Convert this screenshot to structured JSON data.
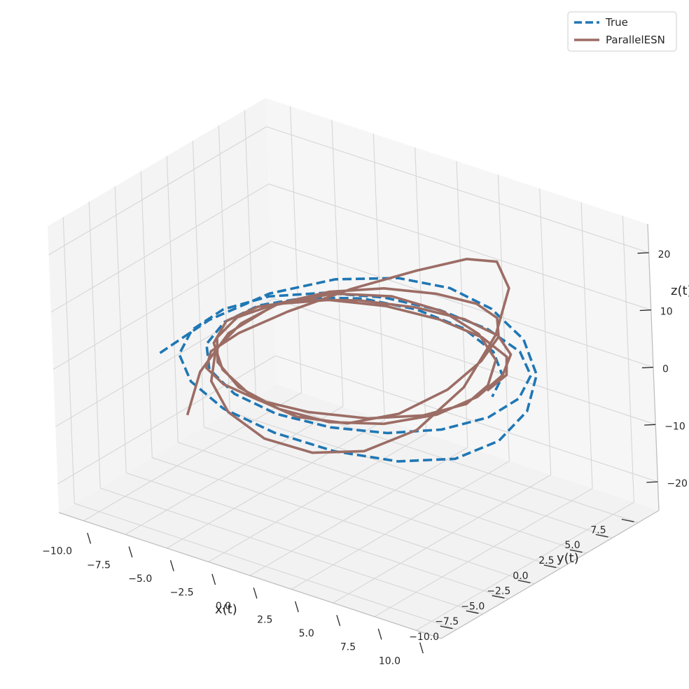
{
  "chart_data": {
    "type": "line",
    "projection": "3d",
    "grid": true,
    "legend_position": "top-right",
    "xlabel": "x(t)",
    "ylabel": "y(t)",
    "zlabel": "z(t)",
    "xlim": [
      -11.5,
      11.5
    ],
    "ylim": [
      -11.5,
      9.5
    ],
    "zlim": [
      -25,
      25
    ],
    "x_ticks": [
      "−10.0",
      "−7.5",
      "−5.0",
      "−2.5",
      "0.0",
      "2.5",
      "5.0",
      "7.5",
      "10.0"
    ],
    "y_ticks": [
      "−10.0",
      "−7.5",
      "−5.0",
      "−2.5",
      "0.0",
      "2.5",
      "5.0",
      "7.5"
    ],
    "z_ticks": [
      "−20",
      "−10",
      "0",
      "10",
      "20"
    ],
    "series": [
      {
        "name": "True",
        "style": "dashed",
        "color": "#1f77b4",
        "points": [
          [
            -9.8,
            -4.0,
            -3.5
          ],
          [
            -9.3,
            0.0,
            -1.5
          ],
          [
            -7.9,
            3.6,
            0.6
          ],
          [
            -5.6,
            6.3,
            2.4
          ],
          [
            -2.8,
            7.9,
            3.6
          ],
          [
            0.0,
            8.4,
            4.0
          ],
          [
            2.8,
            7.9,
            3.6
          ],
          [
            5.6,
            6.5,
            2.4
          ],
          [
            7.8,
            4.2,
            0.8
          ],
          [
            9.2,
            1.0,
            -0.8
          ],
          [
            9.6,
            -2.4,
            -2.0
          ],
          [
            8.9,
            -5.5,
            -2.5
          ],
          [
            6.9,
            -7.8,
            -2.4
          ],
          [
            4.0,
            -9.3,
            -1.8
          ],
          [
            0.8,
            -9.9,
            -1.0
          ],
          [
            -2.5,
            -9.5,
            -0.4
          ],
          [
            -5.4,
            -8.0,
            0.0
          ],
          [
            -7.6,
            -5.6,
            0.1
          ],
          [
            -8.7,
            -2.6,
            0.1
          ],
          [
            -8.8,
            0.6,
            0.2
          ],
          [
            -7.8,
            3.4,
            0.4
          ],
          [
            -5.8,
            5.5,
            0.7
          ],
          [
            -3.1,
            6.9,
            1.0
          ],
          [
            0.0,
            7.4,
            1.2
          ],
          [
            3.1,
            7.0,
            1.3
          ],
          [
            5.8,
            5.8,
            1.2
          ],
          [
            7.7,
            3.8,
            1.0
          ],
          [
            8.6,
            1.2,
            0.6
          ],
          [
            8.5,
            -1.6,
            0.2
          ],
          [
            7.3,
            -4.2,
            -0.3
          ],
          [
            5.3,
            -6.2,
            -0.7
          ],
          [
            2.6,
            -7.4,
            -1.0
          ],
          [
            -0.4,
            -7.8,
            -1.1
          ],
          [
            -3.3,
            -7.2,
            -1.0
          ],
          [
            -5.8,
            -5.6,
            -0.8
          ],
          [
            -7.4,
            -3.3,
            -0.4
          ],
          [
            -8.0,
            -0.6,
            0.0
          ],
          [
            -7.6,
            2.1,
            0.4
          ],
          [
            -6.1,
            4.4,
            0.8
          ],
          [
            -3.8,
            6.0,
            1.1
          ],
          [
            -0.9,
            6.6,
            1.3
          ],
          [
            2.1,
            6.3,
            1.2
          ],
          [
            4.7,
            5.0,
            1.0
          ],
          [
            6.5,
            3.0,
            0.6
          ],
          [
            7.3,
            0.7,
            0.2
          ]
        ]
      },
      {
        "name": "ParallelESN",
        "style": "solid",
        "color": "#9c6d65",
        "points": [
          [
            -6.6,
            -6.6,
            -8.5
          ],
          [
            -7.4,
            -4.0,
            -4.5
          ],
          [
            -7.5,
            -1.0,
            -1.0
          ],
          [
            -6.6,
            2.0,
            1.5
          ],
          [
            -4.6,
            4.5,
            2.8
          ],
          [
            -2.0,
            6.0,
            3.2
          ],
          [
            0.9,
            6.3,
            3.0
          ],
          [
            3.6,
            5.4,
            2.6
          ],
          [
            5.8,
            3.5,
            2.2
          ],
          [
            7.0,
            0.8,
            1.8
          ],
          [
            7.2,
            -1.6,
            1.3
          ],
          [
            6.1,
            -4.0,
            0.8
          ],
          [
            4.0,
            -6.0,
            0.4
          ],
          [
            1.2,
            -7.2,
            0.1
          ],
          [
            -1.6,
            -7.5,
            -0.2
          ],
          [
            -4.2,
            -6.8,
            -0.6
          ],
          [
            -6.3,
            -5.1,
            -1.6
          ],
          [
            -7.6,
            -2.6,
            -2.6
          ],
          [
            -7.8,
            0.4,
            -2.8
          ],
          [
            -6.7,
            3.4,
            -1.2
          ],
          [
            -4.2,
            5.6,
            2.8
          ],
          [
            -0.8,
            6.6,
            8.2
          ],
          [
            2.4,
            6.4,
            13.5
          ],
          [
            5.0,
            5.2,
            16.8
          ],
          [
            6.9,
            3.3,
            16.0
          ],
          [
            7.6,
            0.8,
            11.2
          ],
          [
            7.2,
            -1.8,
            4.4
          ],
          [
            5.8,
            -4.2,
            -1.8
          ],
          [
            3.7,
            -6.0,
            -5.6
          ],
          [
            1.2,
            -7.0,
            -7.2
          ],
          [
            -1.5,
            -7.3,
            -7.0
          ],
          [
            -4.1,
            -6.6,
            -5.6
          ],
          [
            -6.1,
            -5.0,
            -3.8
          ],
          [
            -7.3,
            -2.6,
            -2.0
          ],
          [
            -7.5,
            0.2,
            -0.6
          ],
          [
            -6.8,
            2.8,
            0.8
          ],
          [
            -5.1,
            4.9,
            2.2
          ],
          [
            -2.6,
            6.2,
            3.8
          ],
          [
            0.4,
            6.5,
            5.4
          ],
          [
            3.2,
            5.9,
            7.0
          ],
          [
            5.4,
            4.4,
            8.2
          ],
          [
            6.8,
            2.3,
            8.5
          ],
          [
            7.3,
            -0.2,
            7.4
          ],
          [
            6.8,
            -2.7,
            4.6
          ],
          [
            5.2,
            -4.9,
            1.2
          ],
          [
            3.0,
            -6.4,
            -1.0
          ],
          [
            0.4,
            -7.1,
            -1.6
          ],
          [
            -2.3,
            -7.0,
            -0.9
          ],
          [
            -4.8,
            -5.9,
            0.4
          ],
          [
            -6.5,
            -4.0,
            1.4
          ],
          [
            -7.3,
            -1.5,
            1.8
          ],
          [
            -7.1,
            1.2,
            1.6
          ],
          [
            -5.9,
            3.7,
            1.3
          ],
          [
            -3.8,
            5.6,
            1.2
          ],
          [
            -1.0,
            6.6,
            1.6
          ],
          [
            1.9,
            6.7,
            2.2
          ],
          [
            4.5,
            5.8,
            2.8
          ],
          [
            6.4,
            4.0,
            3.2
          ],
          [
            7.4,
            1.6,
            3.1
          ],
          [
            7.5,
            -1.0,
            2.2
          ],
          [
            6.6,
            -3.5,
            0.9
          ],
          [
            4.7,
            -5.6,
            -0.3
          ],
          [
            2.2,
            -6.9,
            -1.0
          ],
          [
            -0.6,
            -7.2,
            -1.1
          ],
          [
            -3.4,
            -6.6,
            -0.6
          ],
          [
            -5.6,
            -5.1,
            0.1
          ],
          [
            -7.0,
            -2.9,
            0.7
          ],
          [
            -7.4,
            -0.3,
            1.1
          ],
          [
            -6.7,
            2.3,
            1.3
          ],
          [
            -4.9,
            4.5,
            1.4
          ],
          [
            -2.3,
            5.9,
            1.3
          ],
          [
            0.6,
            6.4,
            1.2
          ],
          [
            3.4,
            6.0,
            1.2
          ],
          [
            5.7,
            4.7,
            1.4
          ],
          [
            7.0,
            2.6,
            1.7
          ],
          [
            7.4,
            0.1,
            2.0
          ]
        ]
      }
    ]
  }
}
